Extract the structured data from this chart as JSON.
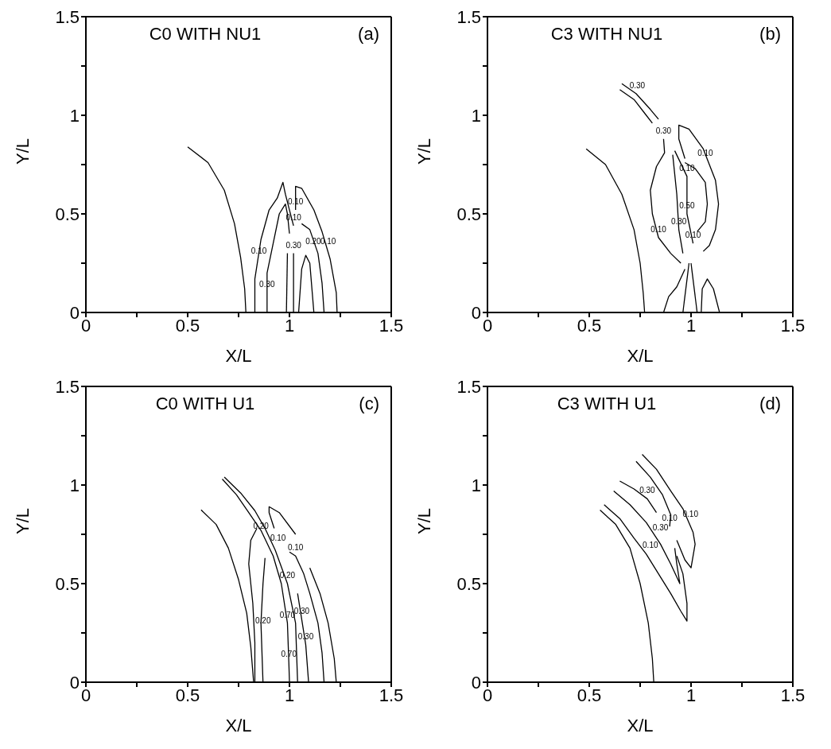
{
  "chart_data": [
    {
      "type": "line",
      "title": "C0 WITH NU1",
      "xlabel": "X/L",
      "ylabel": "Y/L",
      "xlim": [
        0,
        1.5
      ],
      "ylim": [
        0,
        1.5
      ],
      "xticks": [
        0,
        {
          "value": 0.25,
          "label": null
        },
        0.5,
        {
          "value": 0.75,
          "label": null
        },
        1,
        {
          "value": 1.25,
          "label": null
        },
        1.5
      ],
      "yticks": [
        0,
        {
          "value": 0.25,
          "label": null
        },
        0.5,
        {
          "value": 0.75,
          "label": null
        },
        1,
        {
          "value": 1.25,
          "label": null
        },
        1.5
      ],
      "marker": "none",
      "line_style": "solid",
      "series": [
        {
          "color": "#000000",
          "x": [
            0.5,
            0.6,
            0.68,
            0.73,
            0.76,
            0.78,
            0.786
          ],
          "values": [
            0.84,
            0.76,
            0.62,
            0.45,
            0.28,
            0.12,
            0
          ]
        },
        {
          "color": "#000000",
          "x": [
            0.83,
            0.83,
            0.86,
            0.9,
            0.94,
            0.968,
            0.98,
            1.0,
            1.02
          ],
          "values": [
            0,
            0.17,
            0.37,
            0.52,
            0.58,
            0.66,
            0.6,
            0.52,
            0.44
          ]
        },
        {
          "color": "#000000",
          "x": [
            0.89,
            0.89,
            0.89,
            0.92,
            0.95,
            0.98,
            0.99,
            1.0
          ],
          "values": [
            0,
            0.1,
            0.2,
            0.35,
            0.5,
            0.55,
            0.5,
            0.4
          ]
        },
        {
          "color": "#000000",
          "x": [
            1.03,
            1.03,
            1.03,
            1.06,
            1.12,
            1.16,
            1.2,
            1.23,
            1.234
          ],
          "values": [
            0.52,
            0.6,
            0.64,
            0.63,
            0.52,
            0.41,
            0.27,
            0.1,
            0
          ]
        },
        {
          "color": "#000000",
          "x": [
            1.06,
            1.1,
            1.14,
            1.16,
            1.17
          ],
          "values": [
            0.45,
            0.42,
            0.3,
            0.15,
            0
          ]
        },
        {
          "color": "#000000",
          "x": [
            1.045,
            1.06,
            1.08,
            1.1,
            1.12
          ],
          "values": [
            0,
            0.22,
            0.29,
            0.25,
            0
          ]
        },
        {
          "color": "#000000",
          "x": [
            0.985,
            0.99
          ],
          "values": [
            0,
            0.3
          ]
        },
        {
          "color": "#000000",
          "x": [
            1.02,
            1.02
          ],
          "values": [
            0,
            0.3
          ]
        }
      ],
      "annotations": [
        "(a)",
        {
          "text": "0.10",
          "x": 0.85,
          "y": 0.27
        },
        {
          "text": "0.30",
          "x": 0.89,
          "y": 0.1
        },
        {
          "text": "0.10",
          "x": 1.03,
          "y": 0.52
        },
        {
          "text": "0.10",
          "x": 1.02,
          "y": 0.44
        },
        {
          "text": "0.30",
          "x": 1.02,
          "y": 0.3
        },
        {
          "text": "0.20",
          "x": 1.117,
          "y": 0.32
        },
        {
          "text": "0.10",
          "x": 1.19,
          "y": 0.32
        }
      ]
    },
    {
      "type": "line",
      "title": "C3 WITH NU1",
      "xlabel": "X/L",
      "ylabel": "Y/L",
      "xlim": [
        0,
        1.5
      ],
      "ylim": [
        0,
        1.5
      ],
      "xticks": [
        0,
        {
          "value": 0.25,
          "label": null
        },
        0.5,
        {
          "value": 0.75,
          "label": null
        },
        1,
        {
          "value": 1.25,
          "label": null
        },
        1.5
      ],
      "yticks": [
        0,
        {
          "value": 0.25,
          "label": null
        },
        0.5,
        {
          "value": 0.75,
          "label": null
        },
        1,
        {
          "value": 1.25,
          "label": null
        },
        1.5
      ],
      "marker": "none",
      "line_style": "solid",
      "series": [
        {
          "color": "#000000",
          "x": [
            0.485,
            0.58,
            0.66,
            0.72,
            0.75,
            0.765,
            0.772
          ],
          "values": [
            0.83,
            0.75,
            0.6,
            0.42,
            0.25,
            0.1,
            0
          ]
        },
        {
          "color": "#000000",
          "x": [
            0.65,
            0.72,
            0.78,
            0.81
          ],
          "values": [
            1.13,
            1.08,
            1.0,
            0.96
          ]
        },
        {
          "color": "#000000",
          "x": [
            0.66,
            0.73,
            0.8,
            0.84
          ],
          "values": [
            1.16,
            1.11,
            1.03,
            0.98
          ]
        },
        {
          "color": "#000000",
          "x": [
            0.865,
            0.87,
            0.83,
            0.8,
            0.81,
            0.84,
            0.9,
            0.95
          ],
          "values": [
            0.88,
            0.81,
            0.74,
            0.62,
            0.5,
            0.38,
            0.3,
            0.25
          ]
        },
        {
          "color": "#000000",
          "x": [
            0.92,
            0.98,
            0.98,
            1.01
          ],
          "values": [
            0.82,
            0.69,
            0.5,
            0.35
          ]
        },
        {
          "color": "#000000",
          "x": [
            0.91,
            0.93,
            0.94,
            0.96
          ],
          "values": [
            0.8,
            0.6,
            0.42,
            0.3
          ]
        },
        {
          "color": "#000000",
          "x": [
            0.97,
            0.94,
            0.94,
            0.99,
            1.06,
            1.12,
            1.135,
            1.12,
            1.09,
            1.06
          ],
          "values": [
            0.78,
            0.88,
            0.95,
            0.93,
            0.83,
            0.67,
            0.55,
            0.42,
            0.34,
            0.31
          ]
        },
        {
          "color": "#000000",
          "x": [
            0.97,
            1.02,
            1.07,
            1.08,
            1.07,
            1.03
          ],
          "values": [
            0.76,
            0.73,
            0.66,
            0.55,
            0.46,
            0.41
          ]
        },
        {
          "color": "#000000",
          "x": [
            0.865,
            0.89,
            0.93,
            0.97
          ],
          "values": [
            0,
            0.08,
            0.13,
            0.22
          ]
        },
        {
          "color": "#000000",
          "x": [
            1.05,
            1.055,
            1.08,
            1.11,
            1.14
          ],
          "values": [
            0,
            0.12,
            0.17,
            0.12,
            0
          ]
        },
        {
          "color": "#000000",
          "x": [
            0.96,
            0.99
          ],
          "values": [
            0,
            0.25
          ]
        },
        {
          "color": "#000000",
          "x": [
            1.03,
            1.0
          ],
          "values": [
            0,
            0.25
          ]
        }
      ],
      "annotations": [
        "(b)",
        {
          "text": "0.30",
          "x": 0.736,
          "y": 1.11
        },
        {
          "text": "0.30",
          "x": 0.865,
          "y": 0.88
        },
        {
          "text": "0.10",
          "x": 1.07,
          "y": 0.765
        },
        {
          "text": "0.10",
          "x": 0.98,
          "y": 0.69
        },
        {
          "text": "0.50",
          "x": 0.98,
          "y": 0.5
        },
        {
          "text": "0.30",
          "x": 0.94,
          "y": 0.42
        },
        {
          "text": "0.10",
          "x": 0.84,
          "y": 0.38
        },
        {
          "text": "0.10",
          "x": 1.01,
          "y": 0.35
        }
      ]
    },
    {
      "type": "line",
      "title": "C0 WITH U1",
      "xlabel": "X/L",
      "ylabel": "Y/L",
      "xlim": [
        0,
        1.5
      ],
      "ylim": [
        0,
        1.5
      ],
      "xticks": [
        0,
        {
          "value": 0.25,
          "label": null
        },
        0.5,
        {
          "value": 0.75,
          "label": null
        },
        1,
        {
          "value": 1.25,
          "label": null
        },
        1.5
      ],
      "yticks": [
        0,
        {
          "value": 0.25,
          "label": null
        },
        0.5,
        {
          "value": 0.75,
          "label": null
        },
        1,
        {
          "value": 1.25,
          "label": null
        },
        1.5
      ],
      "marker": "none",
      "line_style": "solid",
      "series": [
        {
          "color": "#000000",
          "x": [
            0.566,
            0.64,
            0.7,
            0.75,
            0.79,
            0.81,
            0.824
          ],
          "values": [
            0.874,
            0.8,
            0.68,
            0.52,
            0.35,
            0.18,
            0
          ]
        },
        {
          "color": "#000000",
          "x": [
            0.67,
            0.74,
            0.8,
            0.86,
            0.92,
            0.96,
            0.99,
            0.997,
            1.0
          ],
          "values": [
            1.03,
            0.95,
            0.86,
            0.77,
            0.64,
            0.5,
            0.3,
            0.1,
            0
          ]
        },
        {
          "color": "#000000",
          "x": [
            0.68,
            0.76,
            0.83,
            0.88,
            0.93,
            0.99,
            1.03,
            1.04
          ],
          "values": [
            1.04,
            0.96,
            0.87,
            0.78,
            0.67,
            0.5,
            0.3,
            0
          ]
        },
        {
          "color": "#000000",
          "x": [
            0.84,
            0.81,
            0.8,
            0.82,
            0.83,
            0.83
          ],
          "values": [
            0.78,
            0.72,
            0.6,
            0.4,
            0.2,
            0
          ]
        },
        {
          "color": "#000000",
          "x": [
            0.88,
            0.87,
            0.86,
            0.87
          ],
          "values": [
            0.63,
            0.5,
            0.3,
            0
          ]
        },
        {
          "color": "#000000",
          "x": [
            0.925,
            0.9,
            0.9,
            0.95,
            1.03
          ],
          "values": [
            0.78,
            0.86,
            0.89,
            0.86,
            0.75
          ]
        },
        {
          "color": "#000000",
          "x": [
            1.1,
            1.15,
            1.19,
            1.22,
            1.23
          ],
          "values": [
            0.58,
            0.45,
            0.3,
            0.12,
            0
          ]
        },
        {
          "color": "#000000",
          "x": [
            1.0,
            1.03,
            1.07,
            1.1,
            1.14,
            1.16,
            1.17
          ],
          "values": [
            0.66,
            0.64,
            0.55,
            0.45,
            0.3,
            0.15,
            0
          ]
        },
        {
          "color": "#000000",
          "x": [
            1.04,
            1.06,
            1.08,
            1.094
          ],
          "values": [
            0.45,
            0.32,
            0.19,
            0
          ]
        }
      ],
      "annotations": [
        "(c)",
        {
          "text": "0.20",
          "x": 0.86,
          "y": 0.75
        },
        {
          "text": "0.10",
          "x": 0.944,
          "y": 0.69
        },
        {
          "text": "0.10",
          "x": 1.03,
          "y": 0.64
        },
        {
          "text": "0.20",
          "x": 0.99,
          "y": 0.5
        },
        {
          "text": "0.70",
          "x": 0.99,
          "y": 0.3
        },
        {
          "text": "0.30",
          "x": 1.06,
          "y": 0.32
        },
        {
          "text": "0.20",
          "x": 0.87,
          "y": 0.27
        },
        {
          "text": "0.70",
          "x": 0.997,
          "y": 0.1
        },
        {
          "text": "0.30",
          "x": 1.08,
          "y": 0.19
        }
      ]
    },
    {
      "type": "line",
      "title": "C3 WITH U1",
      "xlabel": "X/L",
      "ylabel": "Y/L",
      "xlim": [
        0,
        1.5
      ],
      "ylim": [
        0,
        1.5
      ],
      "xticks": [
        0,
        {
          "value": 0.25,
          "label": null
        },
        0.5,
        {
          "value": 0.75,
          "label": null
        },
        1,
        {
          "value": 1.25,
          "label": null
        },
        1.5
      ],
      "yticks": [
        0,
        {
          "value": 0.25,
          "label": null
        },
        0.5,
        {
          "value": 0.75,
          "label": null
        },
        1,
        {
          "value": 1.25,
          "label": null
        },
        1.5
      ],
      "marker": "none",
      "line_style": "solid",
      "series": [
        {
          "color": "#000000",
          "x": [
            0.553,
            0.63,
            0.7,
            0.75,
            0.79,
            0.81,
            0.817
          ],
          "values": [
            0.873,
            0.8,
            0.68,
            0.5,
            0.3,
            0.12,
            0
          ]
        },
        {
          "color": "#000000",
          "x": [
            0.573,
            0.65,
            0.72,
            0.78,
            0.84,
            0.9,
            0.95,
            0.98,
            0.98,
            0.96,
            0.93
          ],
          "values": [
            0.9,
            0.83,
            0.73,
            0.65,
            0.55,
            0.45,
            0.36,
            0.31,
            0.4,
            0.55,
            0.64
          ]
        },
        {
          "color": "#000000",
          "x": [
            0.62,
            0.7,
            0.78,
            0.85,
            0.9,
            0.945,
            0.93,
            0.92
          ],
          "values": [
            0.97,
            0.9,
            0.81,
            0.7,
            0.6,
            0.5,
            0.6,
            0.68
          ]
        },
        {
          "color": "#000000",
          "x": [
            0.73,
            0.8,
            0.86,
            0.9,
            0.895
          ],
          "values": [
            1.12,
            1.04,
            0.95,
            0.85,
            0.79
          ]
        },
        {
          "color": "#000000",
          "x": [
            0.76,
            0.83,
            0.9,
            0.96,
            1.01,
            1.02,
            1.0,
            0.97,
            0.93
          ],
          "values": [
            1.155,
            1.08,
            0.97,
            0.88,
            0.76,
            0.7,
            0.58,
            0.62,
            0.72
          ]
        },
        {
          "color": "#000000",
          "x": [
            0.65,
            0.72,
            0.785,
            0.83
          ],
          "values": [
            1.02,
            0.98,
            0.93,
            0.86
          ]
        }
      ],
      "annotations": [
        "(d)",
        {
          "text": "0.30",
          "x": 0.785,
          "y": 0.93
        },
        {
          "text": "0.10",
          "x": 0.895,
          "y": 0.79
        },
        {
          "text": "0.10",
          "x": 0.997,
          "y": 0.81
        },
        {
          "text": "0.30",
          "x": 0.85,
          "y": 0.74
        },
        {
          "text": "0.10",
          "x": 0.8,
          "y": 0.655
        }
      ]
    }
  ]
}
